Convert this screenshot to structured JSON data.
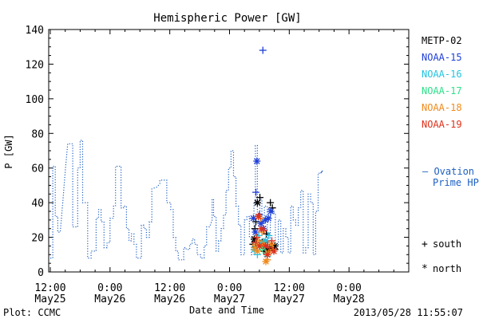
{
  "chart_data": {
    "type": "line",
    "title": "Hemispheric Power [GW]",
    "ylabel": "P [GW]",
    "xlabel": "Date and Time",
    "ylim": [
      0,
      140
    ],
    "yticks": [
      0,
      20,
      40,
      60,
      80,
      100,
      120,
      140
    ],
    "xlim_hours": [
      0,
      72
    ],
    "xticks": [
      {
        "hour": 0,
        "time": "12:00",
        "date": "May25"
      },
      {
        "hour": 12,
        "time": "0:00",
        "date": "May26"
      },
      {
        "hour": 24,
        "time": "12:00",
        "date": "May26"
      },
      {
        "hour": 36,
        "time": "0:00",
        "date": "May27"
      },
      {
        "hour": 48,
        "time": "12:00",
        "date": "May27"
      },
      {
        "hour": 60,
        "time": "0:00",
        "date": "May28"
      }
    ],
    "legend": {
      "placement": "right",
      "items": [
        {
          "label": "METP-02",
          "color": "#000000"
        },
        {
          "label": "NOAA-15",
          "color": "#1f3fd8"
        },
        {
          "label": "NOAA-16",
          "color": "#22c4e0"
        },
        {
          "label": "NOAA-17",
          "color": "#2ee08a"
        },
        {
          "label": "NOAA-18",
          "color": "#f08a1a"
        },
        {
          "label": "NOAA-19",
          "color": "#e0301a"
        }
      ]
    },
    "ovation": {
      "label_line1": "– Ovation",
      "label_line2": "Prime HPI",
      "color": "#1e5fc2",
      "points": [
        [
          0,
          8
        ],
        [
          0.5,
          8
        ],
        [
          0.5,
          61
        ],
        [
          1,
          61
        ],
        [
          1,
          32
        ],
        [
          1.5,
          32
        ],
        [
          1.5,
          23
        ],
        [
          2,
          23
        ],
        [
          2.5,
          40
        ],
        [
          3,
          58
        ],
        [
          3.5,
          74
        ],
        [
          4,
          74
        ],
        [
          4.5,
          74
        ],
        [
          4.5,
          26
        ],
        [
          5,
          26
        ],
        [
          5.5,
          26
        ],
        [
          5.5,
          60
        ],
        [
          6,
          60
        ],
        [
          6,
          76
        ],
        [
          6.5,
          76
        ],
        [
          6.5,
          40
        ],
        [
          7.5,
          40
        ],
        [
          7.5,
          8
        ],
        [
          8.2,
          8
        ],
        [
          8.2,
          12
        ],
        [
          9.2,
          12
        ],
        [
          9.2,
          31
        ],
        [
          9.7,
          31
        ],
        [
          9.7,
          36
        ],
        [
          10.2,
          36
        ],
        [
          10.2,
          29
        ],
        [
          10.8,
          29
        ],
        [
          10.8,
          14
        ],
        [
          11.4,
          14
        ],
        [
          11.4,
          17
        ],
        [
          12,
          17
        ],
        [
          12,
          31
        ],
        [
          12.7,
          31
        ],
        [
          12.7,
          38
        ],
        [
          13.1,
          38
        ],
        [
          13.1,
          61
        ],
        [
          14.2,
          61
        ],
        [
          14.2,
          37
        ],
        [
          14.7,
          37
        ],
        [
          14.7,
          38
        ],
        [
          15.3,
          38
        ],
        [
          15.3,
          25
        ],
        [
          15.8,
          25
        ],
        [
          15.8,
          18
        ],
        [
          16.3,
          18
        ],
        [
          16.3,
          22
        ],
        [
          16.8,
          22
        ],
        [
          16.8,
          16
        ],
        [
          17.3,
          16
        ],
        [
          17.3,
          8
        ],
        [
          18.3,
          8
        ],
        [
          18.3,
          27
        ],
        [
          18.8,
          27
        ],
        [
          18.8,
          25
        ],
        [
          19.3,
          25
        ],
        [
          19.3,
          20
        ],
        [
          19.9,
          20
        ],
        [
          19.9,
          29
        ],
        [
          20.4,
          29
        ],
        [
          20.4,
          48
        ],
        [
          21.4,
          49
        ],
        [
          22,
          51
        ],
        [
          22,
          53
        ],
        [
          23.4,
          53
        ],
        [
          23.4,
          40
        ],
        [
          24.2,
          40
        ],
        [
          24.2,
          36
        ],
        [
          24.7,
          36
        ],
        [
          24.7,
          20
        ],
        [
          25.2,
          20
        ],
        [
          25.2,
          12
        ],
        [
          25.7,
          12
        ],
        [
          25.7,
          7
        ],
        [
          26.8,
          7
        ],
        [
          26.8,
          14
        ],
        [
          27.3,
          14
        ],
        [
          27.3,
          13
        ],
        [
          28,
          13
        ],
        [
          28,
          16
        ],
        [
          28.5,
          16
        ],
        [
          28.5,
          19
        ],
        [
          29,
          19
        ],
        [
          29,
          16
        ],
        [
          29.5,
          16
        ],
        [
          29.5,
          10
        ],
        [
          30.2,
          10
        ],
        [
          30.2,
          8
        ],
        [
          30.9,
          8
        ],
        [
          30.9,
          15
        ],
        [
          31.4,
          15
        ],
        [
          31.4,
          26
        ],
        [
          32,
          26
        ],
        [
          32.5,
          30
        ],
        [
          32.5,
          42
        ],
        [
          32.8,
          42
        ],
        [
          32.8,
          32
        ],
        [
          33.3,
          32
        ],
        [
          33.3,
          12
        ],
        [
          33.8,
          12
        ],
        [
          33.8,
          18
        ],
        [
          34.3,
          18
        ],
        [
          34.3,
          25
        ],
        [
          34.8,
          25
        ],
        [
          34.8,
          33
        ],
        [
          35.3,
          33
        ],
        [
          35.3,
          47
        ],
        [
          35.8,
          47
        ],
        [
          35.8,
          60
        ],
        [
          36.3,
          60
        ],
        [
          36.3,
          70
        ],
        [
          36.8,
          70
        ],
        [
          36.8,
          55
        ],
        [
          37.3,
          55
        ],
        [
          37.3,
          38
        ],
        [
          37.8,
          38
        ],
        [
          37.8,
          27
        ],
        [
          38.3,
          27
        ],
        [
          38.3,
          10
        ],
        [
          39,
          10
        ],
        [
          39,
          30
        ],
        [
          39.5,
          30
        ],
        [
          39.5,
          32
        ],
        [
          40,
          32
        ],
        [
          40,
          20
        ],
        [
          40.4,
          20
        ],
        [
          40.4,
          10
        ],
        [
          40.9,
          10
        ],
        [
          40.9,
          40
        ],
        [
          41.2,
          40
        ],
        [
          41.2,
          73
        ],
        [
          41.6,
          73
        ],
        [
          41.6,
          32
        ],
        [
          42.1,
          32
        ],
        [
          42.1,
          42
        ],
        [
          42.5,
          42
        ],
        [
          42.5,
          28
        ],
        [
          43,
          28
        ],
        [
          43,
          38
        ],
        [
          43.6,
          38
        ],
        [
          43.6,
          17
        ],
        [
          44.2,
          17
        ],
        [
          44.2,
          36
        ],
        [
          44.7,
          36
        ],
        [
          44.7,
          34
        ],
        [
          45.2,
          34
        ],
        [
          45.2,
          15
        ],
        [
          45.8,
          15
        ],
        [
          45.8,
          30
        ],
        [
          46.3,
          30
        ],
        [
          46.3,
          11
        ],
        [
          46.8,
          11
        ],
        [
          46.8,
          25
        ],
        [
          47.3,
          25
        ],
        [
          47.3,
          20
        ],
        [
          47.8,
          20
        ],
        [
          47.8,
          11
        ],
        [
          48.3,
          11
        ],
        [
          48.3,
          38
        ],
        [
          48.8,
          38
        ],
        [
          48.8,
          30
        ],
        [
          49.3,
          30
        ],
        [
          49.3,
          27
        ],
        [
          49.8,
          27
        ],
        [
          49.8,
          37
        ],
        [
          50.3,
          37
        ],
        [
          50.3,
          47
        ],
        [
          50.8,
          47
        ],
        [
          50.8,
          11
        ],
        [
          51.3,
          11
        ],
        [
          51.3,
          14
        ],
        [
          51.8,
          14
        ],
        [
          51.8,
          45
        ],
        [
          52.3,
          45
        ],
        [
          52.3,
          40
        ],
        [
          52.8,
          40
        ],
        [
          52.8,
          10
        ],
        [
          53.3,
          10
        ],
        [
          53.3,
          35
        ],
        [
          53.8,
          35
        ],
        [
          53.8,
          57
        ],
        [
          54.3,
          57
        ]
      ],
      "extension": [
        [
          54.3,
          57
        ],
        [
          54.7,
          58.5
        ]
      ]
    },
    "satellite_passes": {
      "METP-02": [
        [
          40.7,
          16,
          "+"
        ],
        [
          41.1,
          25,
          "+"
        ],
        [
          41.3,
          29,
          "+"
        ],
        [
          41.6,
          40,
          "*"
        ],
        [
          42.1,
          43,
          "+"
        ],
        [
          42.6,
          17,
          "*"
        ],
        [
          43.1,
          17,
          "+"
        ],
        [
          43.6,
          13,
          "*"
        ],
        [
          44.1,
          14,
          "*"
        ],
        [
          44.5,
          14,
          "+"
        ],
        [
          45.1,
          13,
          "+"
        ],
        [
          44.2,
          40,
          "+"
        ],
        [
          44.6,
          37,
          "+"
        ],
        [
          45.1,
          15,
          "*"
        ],
        [
          42.9,
          12,
          "+"
        ],
        [
          41.0,
          19,
          "*"
        ],
        [
          43.4,
          22,
          "+"
        ]
      ],
      "NOAA-15": [
        [
          40.8,
          31,
          "*"
        ],
        [
          41.3,
          46,
          "+"
        ],
        [
          41.5,
          64,
          "*"
        ],
        [
          41.2,
          23,
          "*"
        ],
        [
          42.3,
          28,
          "*"
        ],
        [
          42.8,
          25,
          "*"
        ],
        [
          43.2,
          30,
          "*"
        ],
        [
          43.6,
          16,
          "+"
        ],
        [
          43.8,
          31,
          "*"
        ],
        [
          44.3,
          35,
          "*"
        ],
        [
          42.7,
          128,
          "+"
        ],
        [
          42.0,
          33,
          "+"
        ]
      ],
      "NOAA-16": [
        [
          41.0,
          13,
          "*"
        ],
        [
          41.6,
          10,
          "+"
        ],
        [
          42.4,
          17,
          "*"
        ],
        [
          43.2,
          18,
          "*"
        ],
        [
          43.6,
          9,
          "+"
        ],
        [
          43.9,
          21,
          "+"
        ],
        [
          41.9,
          21,
          "+"
        ]
      ],
      "NOAA-17": [
        [
          41.4,
          15,
          "+"
        ],
        [
          42.6,
          14,
          "*"
        ],
        [
          43.3,
          11,
          "+"
        ]
      ],
      "NOAA-18": [
        [
          41.1,
          14,
          "*"
        ],
        [
          41.6,
          12,
          "*"
        ],
        [
          41.9,
          18,
          "+"
        ],
        [
          42.2,
          31,
          "+"
        ],
        [
          42.8,
          16,
          "*"
        ],
        [
          43.3,
          6,
          "*"
        ],
        [
          43.6,
          7,
          "+"
        ],
        [
          44.4,
          16,
          "*"
        ],
        [
          44.7,
          13,
          "+"
        ],
        [
          42.5,
          23,
          "+"
        ],
        [
          41.3,
          16,
          "+"
        ],
        [
          43.8,
          11,
          "*"
        ]
      ],
      "NOAA-19": [
        [
          41.2,
          17,
          "+"
        ],
        [
          41.8,
          32,
          "*"
        ],
        [
          42.4,
          25,
          "*"
        ],
        [
          42.9,
          24,
          "+"
        ],
        [
          43.2,
          15,
          "*"
        ],
        [
          43.6,
          10,
          "*"
        ],
        [
          44.0,
          14,
          "+"
        ],
        [
          44.5,
          18,
          "+"
        ],
        [
          44.9,
          12,
          "*"
        ],
        [
          42.0,
          15,
          "*"
        ],
        [
          41.5,
          20,
          "+"
        ]
      ]
    },
    "marker_key": [
      {
        "symbol": "+",
        "label": "south"
      },
      {
        "symbol": "*",
        "label": "north"
      }
    ]
  },
  "footer": {
    "plot_credit": "Plot: CCMC",
    "timestamp": "2013/05/28 11:55:07"
  }
}
